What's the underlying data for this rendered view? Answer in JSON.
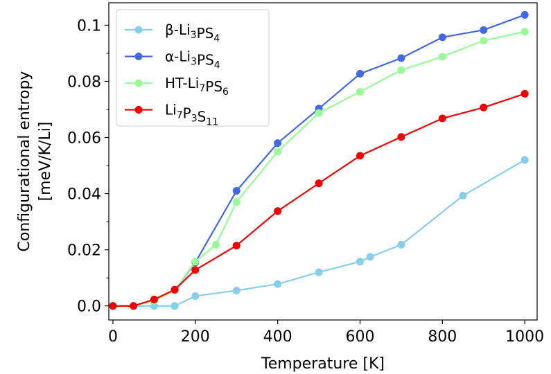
{
  "chart_data": {
    "type": "line",
    "xlabel": "Temperature [K]",
    "ylabel_line1": "Configurational entropy",
    "ylabel_line2": "[meV/K/Li]",
    "xlim": [
      -10,
      1030
    ],
    "ylim": [
      -0.005,
      0.108
    ],
    "x_ticks": [
      0,
      200,
      400,
      600,
      800,
      1000
    ],
    "x_tick_labels": [
      "0",
      "200",
      "400",
      "600",
      "800",
      "1000"
    ],
    "y_ticks": [
      0.0,
      0.02,
      0.04,
      0.06,
      0.08,
      0.1
    ],
    "y_tick_labels": [
      "0.0",
      "0.02",
      "0.04",
      "0.06",
      "0.08",
      "0.1"
    ],
    "y_minor_ticks": [
      0.01,
      0.03,
      0.05,
      0.07,
      0.09
    ],
    "grid": false,
    "legend_position": "upper-left",
    "series": [
      {
        "name": "β-Li3PS4",
        "legend": {
          "main": "β-Li",
          "sub1": "3",
          "mid": "PS",
          "sub2": "4"
        },
        "color": "#87ceeb",
        "x": [
          0,
          50,
          100,
          150,
          200,
          300,
          400,
          500,
          600,
          625,
          700,
          850,
          1000
        ],
        "y": [
          0.0,
          0.0,
          0.0,
          0.0,
          0.0035,
          0.0055,
          0.0078,
          0.012,
          0.0158,
          0.0175,
          0.0218,
          0.0393,
          0.052
        ]
      },
      {
        "name": "α-Li3PS4",
        "legend": {
          "main": "α-Li",
          "sub1": "3",
          "mid": "PS",
          "sub2": "4"
        },
        "color": "#4169e1",
        "x": [
          0,
          50,
          100,
          150,
          200,
          300,
          400,
          500,
          600,
          700,
          800,
          900,
          1000
        ],
        "y": [
          0.0,
          0.0,
          0.002,
          0.0055,
          0.0155,
          0.041,
          0.058,
          0.0703,
          0.0827,
          0.0883,
          0.0957,
          0.0983,
          0.1037
        ]
      },
      {
        "name": "HT-Li7PS6",
        "legend": {
          "main": "HT-Li",
          "sub1": "7",
          "mid": "PS",
          "sub2": "6"
        },
        "color": "#98fb98",
        "x": [
          0,
          50,
          100,
          150,
          200,
          250,
          300,
          400,
          500,
          600,
          700,
          800,
          900,
          1000
        ],
        "y": [
          0.0,
          0.0,
          0.0018,
          0.0055,
          0.0158,
          0.0218,
          0.037,
          0.055,
          0.0687,
          0.0763,
          0.084,
          0.0888,
          0.0945,
          0.0977
        ]
      },
      {
        "name": "Li7P3S11",
        "legend": {
          "main": "Li",
          "sub1": "7",
          "mid": "P",
          "sub2": "3",
          "mid2": "S",
          "sub3": "11"
        },
        "color": "#ee0000",
        "x": [
          0,
          50,
          100,
          150,
          200,
          300,
          400,
          500,
          600,
          700,
          800,
          900,
          1000
        ],
        "y": [
          0.0,
          0.0,
          0.0023,
          0.0058,
          0.0128,
          0.0215,
          0.0338,
          0.0437,
          0.0535,
          0.0602,
          0.0668,
          0.0707,
          0.0756
        ]
      }
    ]
  }
}
